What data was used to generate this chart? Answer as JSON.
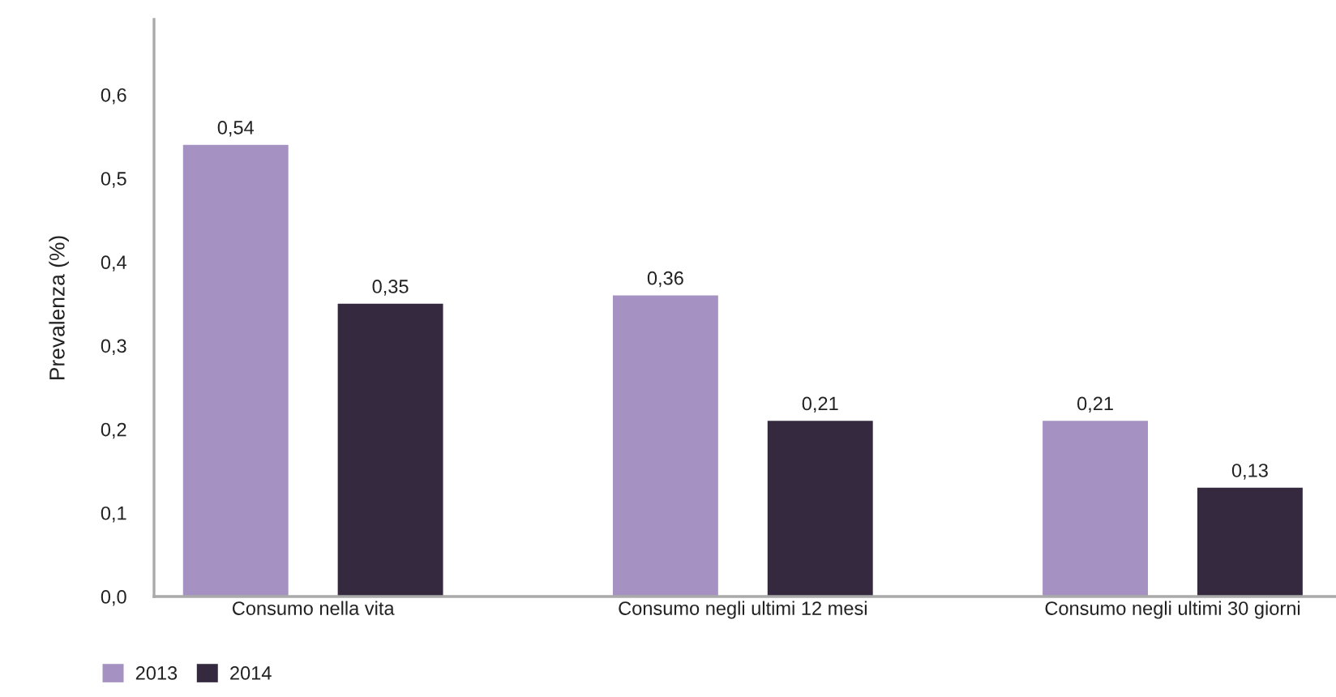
{
  "chart_data": {
    "type": "bar",
    "ylabel": "Prevalenza (%)",
    "categories": [
      "Consumo nella vita",
      "Consumo negli ultimi 12 mesi",
      "Consumo negli ultimi 30 giorni"
    ],
    "series": [
      {
        "name": "2013",
        "color": "#a592c2",
        "values": [
          0.54,
          0.36,
          0.21
        ],
        "value_labels": [
          "0,54",
          "0,36",
          "0,21"
        ]
      },
      {
        "name": "2014",
        "color": "#35293f",
        "values": [
          0.35,
          0.21,
          0.13
        ],
        "value_labels": [
          "0,35",
          "0,21",
          "0,13"
        ]
      }
    ],
    "ylim": [
      0,
      0.69
    ],
    "yticks": [
      {
        "value": 0,
        "label": "0,0"
      },
      {
        "value": 0.1,
        "label": "0,1"
      },
      {
        "value": 0.2,
        "label": "0,2"
      },
      {
        "value": 0.3,
        "label": "0,3"
      },
      {
        "value": 0.4,
        "label": "0,4"
      },
      {
        "value": 0.5,
        "label": "0,5"
      },
      {
        "value": 0.6,
        "label": "0,6"
      }
    ],
    "grid": false,
    "legend": "bottom left"
  }
}
